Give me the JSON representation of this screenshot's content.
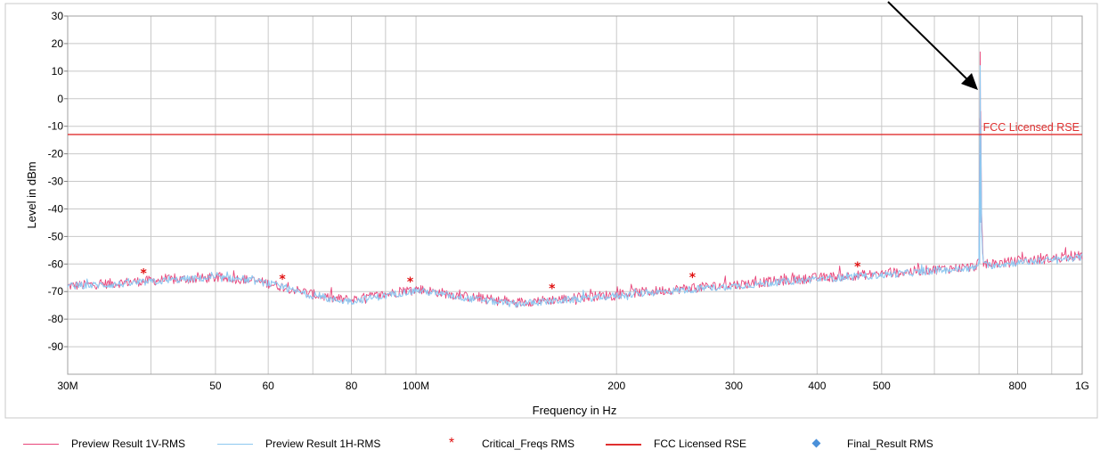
{
  "chart_data": {
    "type": "line",
    "x_scale": "log",
    "xlabel": "Frequency in Hz",
    "ylabel": "Level in dBm",
    "xlim": [
      30000000,
      1000000000
    ],
    "ylim": [
      -100,
      30
    ],
    "grid": true,
    "x_ticks": [
      {
        "value": 30000000,
        "label": "30M"
      },
      {
        "value": 50000000,
        "label": "50"
      },
      {
        "value": 60000000,
        "label": "60"
      },
      {
        "value": 80000000,
        "label": "80"
      },
      {
        "value": 100000000,
        "label": "100M"
      },
      {
        "value": 200000000,
        "label": "200"
      },
      {
        "value": 300000000,
        "label": "300"
      },
      {
        "value": 400000000,
        "label": "400"
      },
      {
        "value": 500000000,
        "label": "500"
      },
      {
        "value": 800000000,
        "label": "800"
      },
      {
        "value": 1000000000,
        "label": "1G"
      }
    ],
    "y_ticks": [
      30,
      20,
      10,
      0,
      -10,
      -20,
      -30,
      -40,
      -50,
      -60,
      -70,
      -80,
      -90
    ],
    "series": [
      {
        "name": "Preview Result 1V-RMS",
        "color": "#e8457a",
        "style": "line",
        "x": [
          30000000,
          35000000,
          40000000,
          45000000,
          50000000,
          55000000,
          60000000,
          65000000,
          70000000,
          75000000,
          80000000,
          90000000,
          100000000,
          120000000,
          140000000,
          160000000,
          180000000,
          200000000,
          250000000,
          300000000,
          400000000,
          500000000,
          600000000,
          690000000,
          700000000,
          703000000,
          706000000,
          710000000,
          730000000,
          800000000,
          900000000,
          1000000000
        ],
        "values": [
          -68,
          -67,
          -66,
          -65.5,
          -65,
          -65.5,
          -67,
          -69,
          -71,
          -72.5,
          -73,
          -71,
          -69,
          -72,
          -74,
          -73,
          -72,
          -71,
          -69,
          -67.5,
          -65,
          -63.5,
          -62,
          -61,
          -59,
          17,
          -40,
          -60,
          -60,
          -59,
          -58,
          -57
        ]
      },
      {
        "name": "Preview Result 1H-RMS",
        "color": "#8ec8f0",
        "style": "line",
        "x": [
          30000000,
          35000000,
          40000000,
          45000000,
          50000000,
          55000000,
          60000000,
          65000000,
          70000000,
          75000000,
          80000000,
          90000000,
          100000000,
          120000000,
          140000000,
          160000000,
          180000000,
          200000000,
          250000000,
          300000000,
          400000000,
          500000000,
          600000000,
          690000000,
          700000000,
          703000000,
          706000000,
          710000000,
          730000000,
          800000000,
          900000000,
          1000000000
        ],
        "values": [
          -68,
          -67.5,
          -66.5,
          -65.5,
          -65,
          -65.5,
          -67,
          -69.5,
          -71.5,
          -73,
          -73.5,
          -71.5,
          -69.5,
          -72.5,
          -74.5,
          -73.5,
          -72.5,
          -71.5,
          -69.5,
          -68,
          -65.5,
          -64,
          -62.5,
          -61.5,
          -60,
          12,
          -45,
          -60.5,
          -60.5,
          -59.5,
          -58.5,
          -57.5
        ]
      },
      {
        "name": "Critical_Freqs RMS",
        "color": "#e01010",
        "style": "marker",
        "x": [
          39000000,
          63000000,
          98000000,
          160000000,
          260000000,
          460000000
        ],
        "values": [
          -63,
          -65,
          -66,
          -68.5,
          -64.5,
          -60.5
        ]
      },
      {
        "name": "FCC Licensed RSE",
        "color": "#e03030",
        "style": "limit",
        "x": [
          30000000,
          1000000000
        ],
        "values": [
          -13,
          -13
        ],
        "label": "FCC Licensed RSE"
      },
      {
        "name": "Final_Result RMS",
        "color": "#4a90d9",
        "style": "marker",
        "x": [],
        "values": []
      }
    ]
  }
}
